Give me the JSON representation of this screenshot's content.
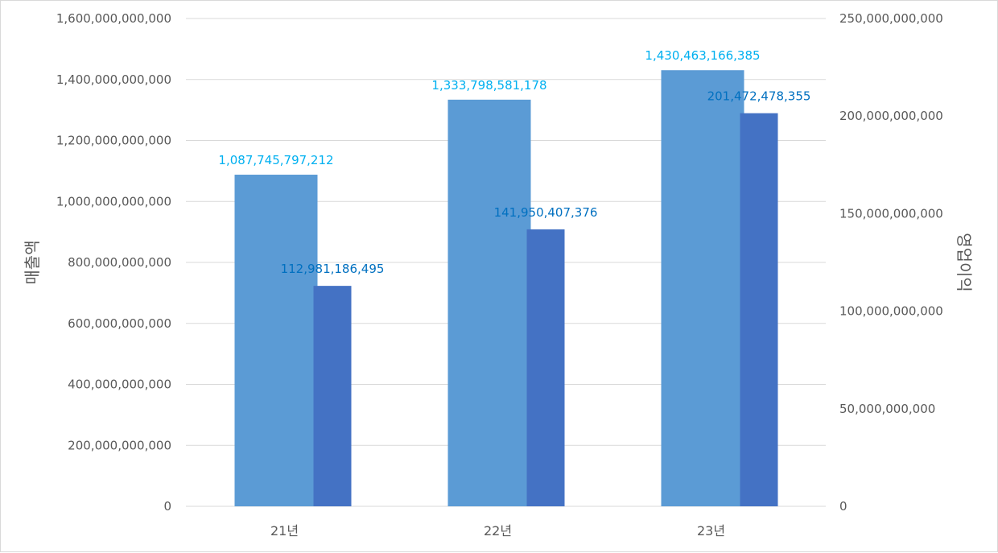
{
  "chart_data": {
    "type": "bar",
    "categories": [
      "21년",
      "22년",
      "23년"
    ],
    "series": [
      {
        "name": "매출액",
        "axis": "left",
        "values": [
          1087745797212,
          1333798581178,
          1430463166385
        ],
        "labels": [
          "1,087,745,797,212",
          "1,333,798,581,178",
          "1,430,463,166,385"
        ],
        "color": "#5b9bd5",
        "label_color": "#00b0f0"
      },
      {
        "name": "영업이익",
        "axis": "right",
        "values": [
          112981186495,
          141950407376,
          201472478355
        ],
        "labels": [
          "112,981,186,495",
          "141,950,407,376",
          "201,472,478,355"
        ],
        "color": "#4472c4",
        "label_color": "#0070c0"
      }
    ],
    "y_left": {
      "title": "매출액",
      "range": [
        0,
        1600000000000
      ],
      "ticks": [
        "0",
        "200,000,000,000",
        "400,000,000,000",
        "600,000,000,000",
        "800,000,000,000",
        "1,000,000,000,000",
        "1,200,000,000,000",
        "1,400,000,000,000",
        "1,600,000,000,000"
      ]
    },
    "y_right": {
      "title": "영업이익",
      "range": [
        0,
        250000000000
      ],
      "ticks": [
        "0",
        "50,000,000,000",
        "100,000,000,000",
        "150,000,000,000",
        "200,000,000,000",
        "250,000,000,000"
      ]
    },
    "grid": true,
    "legend": "none",
    "gridline_color": "#d9d9d9",
    "text_color": "#595959"
  }
}
